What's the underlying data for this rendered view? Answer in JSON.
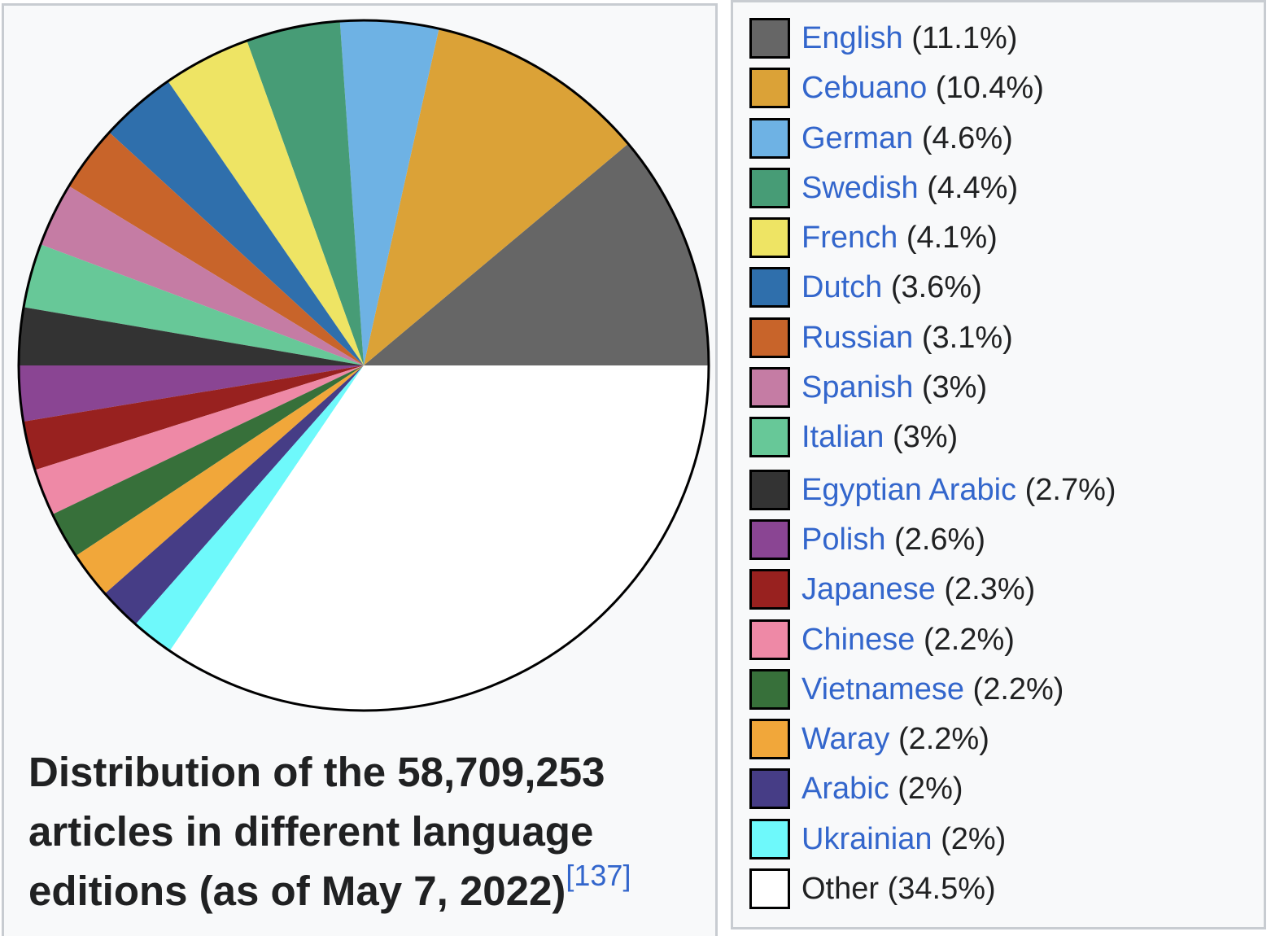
{
  "caption": {
    "text": "Distribution of the 58,709,253 articles in different language editions (as of May 7, 2022)",
    "ref": "[137]"
  },
  "chart_data": {
    "type": "pie",
    "title": "Distribution of the 58,709,253 articles in different language editions (as of May 7, 2022)",
    "slices": [
      {
        "label": "English",
        "value": 11.1,
        "pct_text": "(11.1%)",
        "color": "#666666",
        "link": true
      },
      {
        "label": "Cebuano",
        "value": 10.4,
        "pct_text": "(10.4%)",
        "color": "#dba237",
        "link": true
      },
      {
        "label": "German",
        "value": 4.6,
        "pct_text": "(4.6%)",
        "color": "#6eb2e4",
        "link": true
      },
      {
        "label": "Swedish",
        "value": 4.4,
        "pct_text": "(4.4%)",
        "color": "#479c76",
        "link": true
      },
      {
        "label": "French",
        "value": 4.1,
        "pct_text": "(4.1%)",
        "color": "#eee464",
        "link": true
      },
      {
        "label": "Dutch",
        "value": 3.6,
        "pct_text": "(3.6%)",
        "color": "#2f6fac",
        "link": true
      },
      {
        "label": "Russian",
        "value": 3.1,
        "pct_text": "(3.1%)",
        "color": "#c8642a",
        "link": true
      },
      {
        "label": "Spanish",
        "value": 3.0,
        "pct_text": "(3%)",
        "color": "#c57ca4",
        "link": true
      },
      {
        "label": "Italian",
        "value": 3.0,
        "pct_text": "(3%)",
        "color": "#67c898",
        "link": true
      },
      {
        "label": "Egyptian Arabic",
        "value": 2.7,
        "pct_text": "(2.7%)",
        "color": "#333333",
        "link": true
      },
      {
        "label": "Polish",
        "value": 2.6,
        "pct_text": "(2.6%)",
        "color": "#8a4593",
        "link": true
      },
      {
        "label": "Japanese",
        "value": 2.3,
        "pct_text": "(2.3%)",
        "color": "#98211f",
        "link": true
      },
      {
        "label": "Chinese",
        "value": 2.2,
        "pct_text": "(2.2%)",
        "color": "#ee89a6",
        "link": true
      },
      {
        "label": "Vietnamese",
        "value": 2.2,
        "pct_text": "(2.2%)",
        "color": "#37703a",
        "link": true
      },
      {
        "label": "Waray",
        "value": 2.2,
        "pct_text": "(2.2%)",
        "color": "#f1a73a",
        "link": true
      },
      {
        "label": "Arabic",
        "value": 2.0,
        "pct_text": "(2%)",
        "color": "#463d86",
        "link": true
      },
      {
        "label": "Ukrainian",
        "value": 2.0,
        "pct_text": "(2%)",
        "color": "#6ef9fb",
        "link": true
      },
      {
        "label": "Other",
        "value": 34.5,
        "pct_text": "(34.5%)",
        "color": "#ffffff",
        "link": false
      }
    ],
    "legend_placement": "right",
    "start_direction": "east",
    "order": "counterclockwise"
  }
}
